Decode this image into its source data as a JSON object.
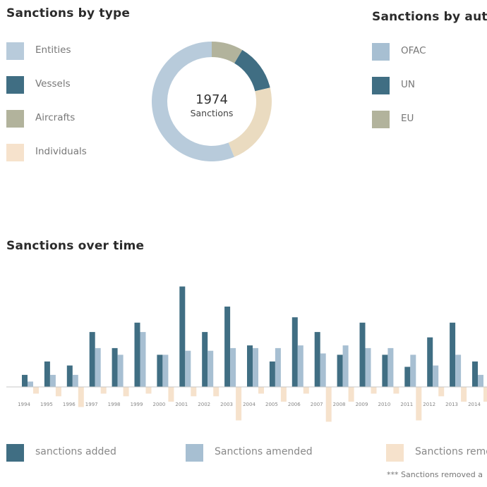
{
  "type_panel": {
    "title": "Sanctions by type",
    "legend": [
      {
        "label": "Entities",
        "color": "#b8cbdb",
        "value": 1108
      },
      {
        "label": "Vessels",
        "color": "#406e83",
        "value": 252
      },
      {
        "label": "Aircrafts",
        "color": "#b2b39c",
        "value": 168
      },
      {
        "label": "Individuals",
        "color": "#eadbc0",
        "value": 446
      }
    ],
    "total": "1974",
    "total_label": "Sanctions"
  },
  "authority_panel": {
    "title": "Sanctions by autho",
    "legend": [
      {
        "label": "OFAC",
        "color": "#a7bfd2"
      },
      {
        "label": "UN",
        "color": "#406e83"
      },
      {
        "label": "EU",
        "color": "#b2b39c"
      }
    ]
  },
  "time_panel": {
    "title": "Sanctions over time",
    "legend": [
      {
        "label": "sanctions added",
        "color": "#406e83"
      },
      {
        "label": "Sanctions amended",
        "color": "#a7bfd2"
      },
      {
        "label": "Sanctions remo",
        "color": "#f6e2cc"
      }
    ],
    "footnote": "*** Sanctions removed a"
  },
  "chart_data": [
    {
      "type": "pie",
      "title": "Sanctions by type",
      "labels": [
        "Entities",
        "Vessels",
        "Aircrafts",
        "Individuals"
      ],
      "values": [
        1108,
        252,
        168,
        446
      ],
      "total": 1974
    },
    {
      "type": "bar",
      "title": "Sanctions over time",
      "categories": [
        "1994",
        "1995",
        "1996",
        "1997",
        "1998",
        "1999",
        "2000",
        "2001",
        "2002",
        "2003",
        "2004",
        "2005",
        "2006",
        "2007",
        "2008",
        "2009",
        "2010",
        "2011",
        "2012",
        "2013",
        "2014"
      ],
      "series": [
        {
          "name": "sanctions added",
          "color": "#406e83",
          "values": [
            9,
            19,
            16,
            41,
            29,
            48,
            24,
            75,
            41,
            60,
            31,
            19,
            52,
            41,
            24,
            48,
            24,
            15,
            37,
            48,
            19
          ]
        },
        {
          "name": "Sanctions amended",
          "color": "#a7bfd2",
          "values": [
            4,
            9,
            9,
            29,
            24,
            41,
            24,
            27,
            27,
            29,
            29,
            29,
            31,
            25,
            31,
            29,
            29,
            24,
            16,
            24,
            9
          ]
        },
        {
          "name": "Sanctions remo",
          "color": "#f6e2cc",
          "values": [
            -5,
            -7,
            -15,
            -5,
            -7,
            -5,
            -11,
            -7,
            -7,
            -25,
            -5,
            -11,
            -5,
            -26,
            -11,
            -5,
            -5,
            -25,
            -7,
            -11,
            -11
          ]
        }
      ],
      "ylim": [
        -30,
        80
      ]
    }
  ]
}
